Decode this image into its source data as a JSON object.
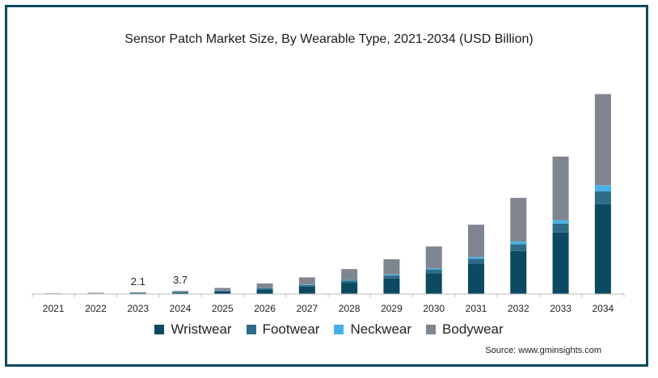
{
  "title": "Sensor Patch Market Size, By Wearable Type, 2021-2034  (USD Billion)",
  "source": "Source: www.gminsights.com",
  "colors": {
    "wristwear": "#0b4a61",
    "footwear": "#2c6c88",
    "neckwear": "#48b0e8",
    "bodywear": "#7f8690",
    "axis": "#bdbdbd",
    "text": "#222222"
  },
  "chart_data": {
    "type": "bar",
    "stacked": true,
    "categories": [
      "2021",
      "2022",
      "2023",
      "2024",
      "2025",
      "2026",
      "2027",
      "2028",
      "2029",
      "2030",
      "2031",
      "2032",
      "2033",
      "2034"
    ],
    "series": [
      {
        "name": "Wristwear",
        "values": [
          0.3,
          0.6,
          1.0,
          1.7,
          3.1,
          5.4,
          8.9,
          13.4,
          18.6,
          24.8,
          36.2,
          51.2,
          73.3,
          106.8
        ]
      },
      {
        "name": "Footwear",
        "values": [
          0.1,
          0.2,
          0.3,
          0.5,
          0.8,
          1.3,
          1.8,
          2.5,
          3.4,
          4.4,
          5.6,
          8.1,
          10.5,
          15.3
        ]
      },
      {
        "name": "Neckwear",
        "values": [
          0.0,
          0.1,
          0.1,
          0.2,
          0.3,
          0.5,
          0.7,
          0.9,
          1.3,
          1.5,
          2.1,
          3.1,
          4.2,
          7.4
        ]
      },
      {
        "name": "Bodywear",
        "values": [
          0.4,
          0.6,
          0.7,
          1.3,
          3.0,
          5.3,
          8.4,
          12.9,
          18.1,
          25.9,
          38.6,
          52.0,
          75.6,
          108.5
        ]
      }
    ],
    "data_labels": [
      {
        "category": "2023",
        "text": "2.1"
      },
      {
        "category": "2024",
        "text": "3.7"
      }
    ],
    "ylim": [
      0,
      250
    ],
    "legend": "bottom",
    "grid": false
  }
}
